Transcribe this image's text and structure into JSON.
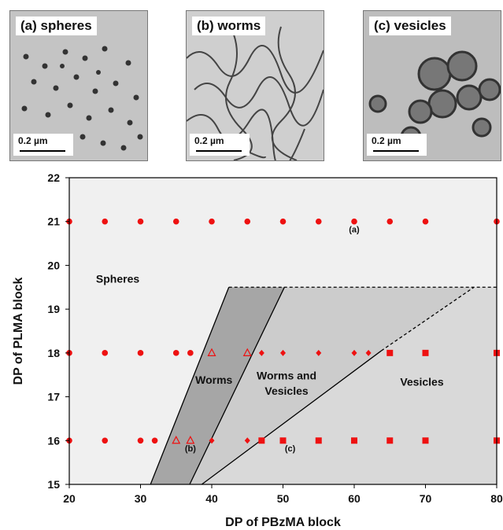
{
  "panels": [
    {
      "label": "(a) spheres",
      "scalebar": "0.2 µm"
    },
    {
      "label": "(b) worms",
      "scalebar": "0.2 µm"
    },
    {
      "label": "(c) vesicles",
      "scalebar": "0.2 µm"
    }
  ],
  "chart_data": {
    "type": "scatter",
    "xlabel": "DP of PBzMA block",
    "ylabel": "DP of PLMA block",
    "xlim": [
      20,
      80
    ],
    "ylim": [
      15,
      22
    ],
    "xticks": [
      20,
      30,
      40,
      50,
      60,
      70,
      80
    ],
    "yticks": [
      15,
      16,
      17,
      18,
      19,
      20,
      21,
      22
    ],
    "grid": false,
    "legend": "none",
    "marker_color": "#ee1111",
    "region_colors": {
      "spheres": "#f0f0f0",
      "worms": "#a6a6a6",
      "worms_vesicles": "#cccccc",
      "vesicles": "#d9d9d9"
    },
    "region_labels": [
      {
        "text": "Spheres",
        "x": 26.8,
        "y": 19.6
      },
      {
        "text": "Worms",
        "x": 40.3,
        "y": 17.3
      },
      {
        "text": "Worms and",
        "x": 50.5,
        "y": 17.4
      },
      {
        "text": "Vesicles",
        "x": 50.5,
        "y": 17.05
      },
      {
        "text": "Vesicles",
        "x": 69.5,
        "y": 17.25
      }
    ],
    "point_labels": [
      {
        "text": "(a)",
        "x": 60,
        "y": 20.75
      },
      {
        "text": "(b)",
        "x": 37,
        "y": 15.75
      },
      {
        "text": "(c)",
        "x": 51,
        "y": 15.75
      }
    ],
    "boundaries": [
      {
        "type": "solid",
        "points": [
          [
            31.4,
            15
          ],
          [
            42.4,
            19.5
          ]
        ]
      },
      {
        "type": "dashed",
        "points": [
          [
            42.4,
            19.5
          ],
          [
            80,
            19.5
          ]
        ]
      },
      {
        "type": "solid",
        "points": [
          [
            36.9,
            15
          ],
          [
            50.2,
            19.5
          ]
        ]
      },
      {
        "type": "solid",
        "points": [
          [
            38.6,
            15
          ],
          [
            63.8,
            18.05
          ]
        ]
      },
      {
        "type": "dashed",
        "points": [
          [
            63.8,
            18.05
          ],
          [
            76.8,
            19.5
          ]
        ]
      }
    ],
    "series": [
      {
        "name": "Spheres",
        "marker": "circle",
        "points": [
          [
            20,
            21
          ],
          [
            25,
            21
          ],
          [
            30,
            21
          ],
          [
            35,
            21
          ],
          [
            40,
            21
          ],
          [
            45,
            21
          ],
          [
            50,
            21
          ],
          [
            55,
            21
          ],
          [
            60,
            21
          ],
          [
            65,
            21
          ],
          [
            70,
            21
          ],
          [
            80,
            21
          ],
          [
            20,
            18
          ],
          [
            25,
            18
          ],
          [
            30,
            18
          ],
          [
            35,
            18
          ],
          [
            37,
            18
          ],
          [
            20,
            16
          ],
          [
            25,
            16
          ],
          [
            30,
            16
          ],
          [
            32,
            16
          ]
        ]
      },
      {
        "name": "Worms",
        "marker": "triangle",
        "points": [
          [
            40,
            18
          ],
          [
            45,
            18
          ],
          [
            35,
            16
          ],
          [
            37,
            16
          ]
        ]
      },
      {
        "name": "Worms and Vesicles",
        "marker": "diamond",
        "points": [
          [
            47,
            18
          ],
          [
            50,
            18
          ],
          [
            55,
            18
          ],
          [
            60,
            18
          ],
          [
            62,
            18
          ],
          [
            40,
            16
          ],
          [
            45,
            16
          ]
        ]
      },
      {
        "name": "Vesicles",
        "marker": "square",
        "points": [
          [
            65,
            18
          ],
          [
            70,
            18
          ],
          [
            80,
            18
          ],
          [
            47,
            16
          ],
          [
            50,
            16
          ],
          [
            55,
            16
          ],
          [
            60,
            16
          ],
          [
            65,
            16
          ],
          [
            70,
            16
          ],
          [
            80,
            16
          ]
        ]
      }
    ]
  }
}
